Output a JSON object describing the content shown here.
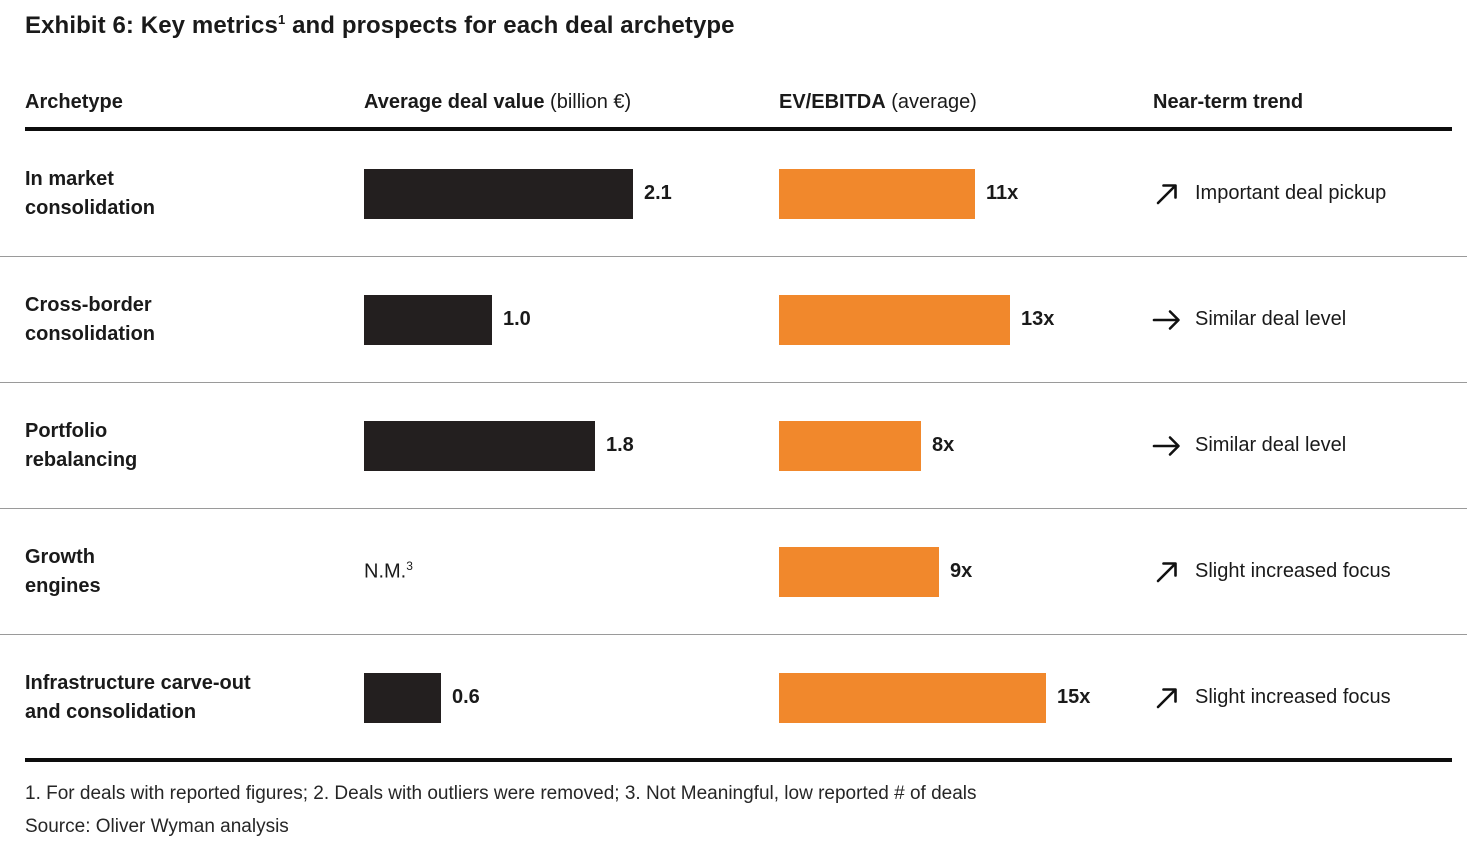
{
  "title": {
    "prefix": "Exhibit 6: Key metrics",
    "footnote_ref": "1",
    "suffix": " and prospects for each deal archetype"
  },
  "columns": {
    "archetype": "Archetype",
    "deal_value": {
      "bold": "Average deal value",
      "normal": "(billion €)"
    },
    "ev_ebitda": {
      "bold": "EV/EBITDA",
      "normal": "(average)"
    },
    "trend": "Near-term trend"
  },
  "rows": [
    {
      "name_lines": [
        "In market",
        "consolidation"
      ],
      "deal_value": 2.1,
      "deal_value_label": "2.1",
      "ev_ebitda": 11,
      "ev_label": "11x",
      "trend_icon": "up-right-arrow",
      "trend_label": "Important deal pickup"
    },
    {
      "name_lines": [
        "Cross-border",
        "consolidation"
      ],
      "deal_value": 1.0,
      "deal_value_label": "1.0",
      "ev_ebitda": 13,
      "ev_label": "13x",
      "trend_icon": "right-arrow",
      "trend_label": "Similar deal level"
    },
    {
      "name_lines": [
        "Portfolio",
        "rebalancing"
      ],
      "deal_value": 1.8,
      "deal_value_label": "1.8",
      "ev_ebitda": 8,
      "ev_label": "8x",
      "trend_icon": "right-arrow",
      "trend_label": "Similar deal level"
    },
    {
      "name_lines": [
        "Growth",
        "engines"
      ],
      "deal_value": null,
      "deal_value_label": "N.M.",
      "deal_value_sup": "3",
      "ev_ebitda": 9,
      "ev_label": "9x",
      "trend_icon": "up-right-arrow",
      "trend_label": "Slight increased focus"
    },
    {
      "name_lines": [
        "Infrastructure carve-out",
        "and consolidation"
      ],
      "deal_value": 0.6,
      "deal_value_label": "0.6",
      "ev_ebitda": 15,
      "ev_label": "15x",
      "trend_icon": "up-right-arrow",
      "trend_label": "Slight increased focus"
    }
  ],
  "footer": {
    "footnote": "1. For deals with reported figures; 2. Deals with outliers were removed; 3. Not Meaningful, low reported # of deals",
    "source": "Source: Oliver Wyman analysis"
  },
  "colors": {
    "bar_dark": "#231F1F",
    "bar_orange": "#F1882C",
    "rule": "#0D0D0D",
    "separator": "#9A9A9A"
  },
  "chart_data": {
    "type": "bar",
    "title": "Exhibit 6: Key metrics and prospects for each deal archetype",
    "orientation": "horizontal",
    "categories": [
      "In market consolidation",
      "Cross-border consolidation",
      "Portfolio rebalancing",
      "Growth engines",
      "Infrastructure carve-out and consolidation"
    ],
    "series": [
      {
        "name": "Average deal value (billion €)",
        "values": [
          2.1,
          1.0,
          1.8,
          null,
          0.6
        ],
        "color": "#231F1F",
        "null_label": "N.M. (Not Meaningful, low reported # of deals)"
      },
      {
        "name": "EV/EBITDA (average)",
        "values": [
          11,
          13,
          8,
          9,
          15
        ],
        "unit": "x",
        "color": "#F1882C"
      }
    ],
    "annotations": {
      "near_term_trend": [
        {
          "category": "In market consolidation",
          "direction": "up",
          "label": "Important deal pickup"
        },
        {
          "category": "Cross-border consolidation",
          "direction": "flat",
          "label": "Similar deal level"
        },
        {
          "category": "Portfolio rebalancing",
          "direction": "flat",
          "label": "Similar deal level"
        },
        {
          "category": "Growth engines",
          "direction": "up",
          "label": "Slight increased focus"
        },
        {
          "category": "Infrastructure carve-out and consolidation",
          "direction": "up",
          "label": "Slight increased focus"
        }
      ]
    },
    "axis": {
      "deal_value_max": 2.1,
      "ev_ebitda_max": 15
    },
    "grid": false,
    "legend": false
  }
}
